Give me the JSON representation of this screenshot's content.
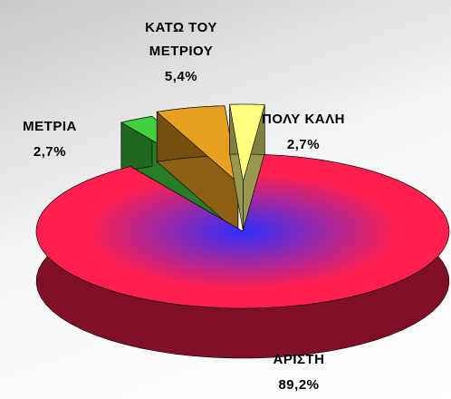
{
  "chart_data": {
    "type": "pie",
    "categories": [
      "ΑΡΙΣΤΗ",
      "ΠΟΛΥ ΚΑΛΗ",
      "ΚΑΤΩ ΤΟΥ ΜΕΤΡΙΟΥ",
      "ΜΕΤΡΙΑ"
    ],
    "values": [
      89.2,
      2.7,
      5.4,
      2.7
    ],
    "value_labels": [
      "89,2%",
      "2,7%",
      "5,4%",
      "2,7%"
    ],
    "colors": [
      "#ff2050",
      "#ffff80",
      "#e8a020",
      "#40d040"
    ]
  }
}
